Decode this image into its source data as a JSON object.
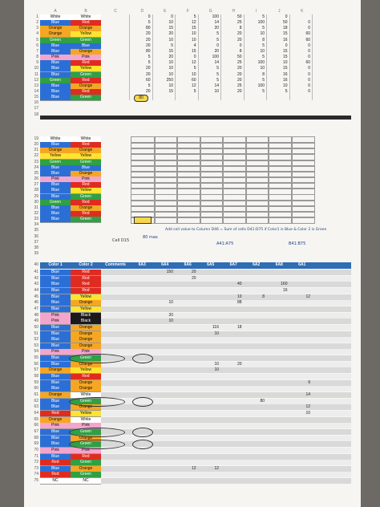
{
  "colors": {
    "White": "#ffffff",
    "Red": "#e02b20",
    "Orange": "#f5a623",
    "Yellow": "#ffe32e",
    "Green": "#2fa043",
    "Blue": "#2b6fd6",
    "Pink": "#f4a5cc",
    "Black": "#1a1a1a",
    "NC": "#ffffff",
    "header": "#2f6db5",
    "divider": "#2a2a2a"
  },
  "col_headers": [
    "A",
    "B",
    "C",
    "D",
    "E",
    "F",
    "G",
    "H",
    "I",
    "J",
    "K"
  ],
  "top_rows": [
    {
      "n": "1",
      "a": "White",
      "b": "White",
      "v": [
        "0",
        "0",
        "5",
        "100",
        "50",
        "5",
        "0"
      ]
    },
    {
      "n": "2",
      "a": "Blue",
      "b": "Red",
      "v": [
        "5",
        "10",
        "12",
        "14",
        "25",
        "100",
        "50",
        "0"
      ]
    },
    {
      "n": "3",
      "a": "Orange",
      "b": "Orange",
      "v": [
        "80",
        "15",
        "15",
        "20",
        "8",
        "5",
        "18",
        "0"
      ]
    },
    {
      "n": "4",
      "a": "Orange",
      "b": "Yellow",
      "v": [
        "20",
        "20",
        "10",
        "5",
        "20",
        "10",
        "15",
        "60"
      ]
    },
    {
      "n": "5",
      "a": "Green",
      "b": "Green",
      "v": [
        "20",
        "10",
        "10",
        "5",
        "20",
        "8",
        "16",
        "60"
      ]
    },
    {
      "n": "6",
      "a": "Blue",
      "b": "Blue",
      "v": [
        "20",
        "5",
        "4",
        "0",
        "0",
        "5",
        "0",
        "0"
      ]
    },
    {
      "n": "7",
      "a": "Blue",
      "b": "Orange",
      "v": [
        "80",
        "15",
        "15",
        "20",
        "8",
        "10",
        "15",
        "0"
      ]
    },
    {
      "n": "8",
      "a": "Pink",
      "b": "Pink",
      "v": [
        "5",
        "20",
        "0",
        "100",
        "50",
        "5",
        "15",
        "0"
      ]
    },
    {
      "n": "9",
      "a": "Blue",
      "b": "Red",
      "v": [
        "5",
        "10",
        "12",
        "14",
        "25",
        "100",
        "10",
        "60"
      ]
    },
    {
      "n": "10",
      "a": "Blue",
      "b": "Yellow",
      "v": [
        "20",
        "10",
        "5",
        "5",
        "20",
        "10",
        "15",
        "0"
      ]
    },
    {
      "n": "11",
      "a": "Blue",
      "b": "Green",
      "v": [
        "20",
        "10",
        "10",
        "5",
        "20",
        "8",
        "16",
        "0"
      ]
    },
    {
      "n": "12",
      "a": "Green",
      "b": "Red",
      "v": [
        "60",
        "250",
        "60",
        "5",
        "20",
        "5",
        "16",
        "0"
      ]
    },
    {
      "n": "13",
      "a": "Blue",
      "b": "Orange",
      "v": [
        "5",
        "10",
        "12",
        "14",
        "25",
        "100",
        "10",
        "0"
      ]
    },
    {
      "n": "14",
      "a": "Blue",
      "b": "Red",
      "v": [
        "20",
        "15",
        "5",
        "10",
        "20",
        "5",
        "5",
        "0"
      ]
    },
    {
      "n": "15",
      "a": "Blue",
      "b": "Green",
      "v": [
        "80",
        "",
        "",
        "",
        "",
        "",
        "",
        ""
      ]
    }
  ],
  "mid_rows": [
    {
      "n": "19",
      "a": "White",
      "b": "White"
    },
    {
      "n": "20",
      "a": "Blue",
      "b": "Red"
    },
    {
      "n": "21",
      "a": "Orange",
      "b": "Orange"
    },
    {
      "n": "22",
      "a": "Yellow",
      "b": "Yellow"
    },
    {
      "n": "23",
      "a": "Green",
      "b": "Green"
    },
    {
      "n": "24",
      "a": "Blue",
      "b": "Blue"
    },
    {
      "n": "25",
      "a": "Blue",
      "b": "Orange"
    },
    {
      "n": "26",
      "a": "Pink",
      "b": "Pink"
    },
    {
      "n": "27",
      "a": "Blue",
      "b": "Red"
    },
    {
      "n": "28",
      "a": "Blue",
      "b": "Yellow"
    },
    {
      "n": "29",
      "a": "Blue",
      "b": "Green"
    },
    {
      "n": "30",
      "a": "Green",
      "b": "Red"
    },
    {
      "n": "31",
      "a": "Blue",
      "b": "Orange"
    },
    {
      "n": "32",
      "a": "Blue",
      "b": "Red"
    },
    {
      "n": "33",
      "a": "Blue",
      "b": "Green"
    }
  ],
  "empty_rows": [
    "16",
    "17",
    "18",
    "34",
    "35",
    "36",
    "37",
    "38",
    "39"
  ],
  "section_header": {
    "n": "40",
    "labels": [
      "Color 1",
      "Color 2",
      "Comments",
      "6A3",
      "6A4",
      "6A6",
      "6A5",
      "6A7",
      "6A2",
      "6A8",
      "6A1"
    ]
  },
  "bottom_rows": [
    {
      "n": "41",
      "a": "Blue",
      "b": "Red",
      "v": [
        "",
        "150",
        "20",
        "",
        "",
        "",
        "",
        ""
      ]
    },
    {
      "n": "42",
      "a": "Blue",
      "b": "Red",
      "v": [
        "",
        "",
        "20",
        "",
        "",
        "",
        "",
        ""
      ]
    },
    {
      "n": "43",
      "a": "Blue",
      "b": "Red",
      "v": [
        "",
        "",
        "",
        "",
        "40",
        "",
        "160",
        ""
      ]
    },
    {
      "n": "44",
      "a": "Blue",
      "b": "Red",
      "v": [
        "",
        "",
        "",
        "",
        "",
        "",
        "16",
        ""
      ]
    },
    {
      "n": "45",
      "a": "Blue",
      "b": "Yellow",
      "v": [
        "",
        "",
        "",
        "",
        "10",
        "8",
        "",
        "12"
      ]
    },
    {
      "n": "46",
      "a": "Blue",
      "b": "Orange",
      "v": [
        "",
        "10",
        "",
        "",
        "88",
        "",
        "",
        ""
      ]
    },
    {
      "n": "47",
      "a": "Blue",
      "b": "Yellow",
      "v": [
        "",
        "",
        "",
        "",
        "",
        "",
        "",
        ""
      ]
    },
    {
      "n": "48",
      "a": "Pink",
      "b": "Black",
      "v": [
        "",
        "20",
        "",
        "",
        "",
        "",
        "",
        ""
      ]
    },
    {
      "n": "49",
      "a": "Pink",
      "b": "Black",
      "v": [
        "",
        "10",
        "",
        "",
        "",
        "",
        "",
        ""
      ]
    },
    {
      "n": "50",
      "a": "Blue",
      "b": "Orange",
      "v": [
        "",
        "",
        "",
        "116",
        "18",
        "",
        "",
        ""
      ]
    },
    {
      "n": "51",
      "a": "Blue",
      "b": "Orange",
      "v": [
        "",
        "",
        "",
        "10",
        "",
        "",
        "",
        ""
      ]
    },
    {
      "n": "52",
      "a": "Blue",
      "b": "Orange",
      "v": [
        "",
        "",
        "",
        "",
        "",
        "",
        "",
        ""
      ]
    },
    {
      "n": "53",
      "a": "Blue",
      "b": "Orange",
      "v": [
        "",
        "",
        "",
        "",
        "",
        "",
        "",
        ""
      ]
    },
    {
      "n": "54",
      "a": "Pink",
      "b": "Pink",
      "v": [
        "",
        "",
        "",
        "",
        "",
        "",
        "",
        ""
      ]
    },
    {
      "n": "55",
      "a": "Blue",
      "b": "Green",
      "v": [
        "",
        "",
        "",
        "",
        "",
        "",
        "",
        ""
      ]
    },
    {
      "n": "56",
      "a": "Blue",
      "b": "Orange",
      "v": [
        "",
        "",
        "",
        "10",
        "20",
        "",
        "",
        ""
      ]
    },
    {
      "n": "57",
      "a": "Orange",
      "b": "Yellow",
      "v": [
        "",
        "",
        "",
        "10",
        "",
        "",
        "",
        ""
      ]
    },
    {
      "n": "58",
      "a": "Blue",
      "b": "Red",
      "v": [
        "",
        "",
        "",
        "",
        "",
        "",
        "",
        ""
      ]
    },
    {
      "n": "59",
      "a": "Blue",
      "b": "Orange",
      "v": [
        "",
        "",
        "",
        "",
        "",
        "",
        "",
        "9"
      ]
    },
    {
      "n": "60",
      "a": "Blue",
      "b": "Orange",
      "v": [
        "",
        "",
        "",
        "",
        "",
        "",
        "",
        ""
      ]
    },
    {
      "n": "61",
      "a": "Orange",
      "b": "White",
      "v": [
        "",
        "",
        "",
        "",
        "",
        "",
        "",
        "14"
      ]
    },
    {
      "n": "62",
      "a": "Blue",
      "b": "Green",
      "v": [
        "",
        "",
        "",
        "",
        "",
        "80",
        "",
        ""
      ]
    },
    {
      "n": "63",
      "a": "Blue",
      "b": "Orange",
      "v": [
        "",
        "",
        "",
        "",
        "",
        "",
        "",
        "12"
      ]
    },
    {
      "n": "64",
      "a": "Red",
      "b": "Yellow",
      "v": [
        "",
        "",
        "",
        "",
        "",
        "",
        "",
        "10"
      ]
    },
    {
      "n": "65",
      "a": "Orange",
      "b": "White",
      "v": [
        "",
        "",
        "",
        "",
        "",
        "",
        "",
        ""
      ]
    },
    {
      "n": "66",
      "a": "Pink",
      "b": "Pink",
      "v": [
        "",
        "",
        "",
        "",
        "",
        "",
        "",
        ""
      ]
    },
    {
      "n": "67",
      "a": "Blue",
      "b": "Green",
      "v": [
        "",
        "",
        "",
        "",
        "",
        "",
        "",
        ""
      ]
    },
    {
      "n": "68",
      "a": "Blue",
      "b": "Orange",
      "v": [
        "",
        "",
        "",
        "",
        "",
        "",
        "",
        ""
      ]
    },
    {
      "n": "69",
      "a": "Blue",
      "b": "Green",
      "v": [
        "",
        "",
        "",
        "",
        "",
        "",
        "",
        ""
      ]
    },
    {
      "n": "70",
      "a": "Pink",
      "b": "Pink",
      "v": [
        "",
        "",
        "",
        "",
        "",
        "",
        "",
        ""
      ]
    },
    {
      "n": "71",
      "a": "Blue",
      "b": "Red",
      "v": [
        "",
        "",
        "",
        "",
        "",
        "",
        "",
        ""
      ]
    },
    {
      "n": "72",
      "a": "Red",
      "b": "Green",
      "v": [
        "",
        "",
        "",
        "",
        "",
        "",
        "",
        ""
      ]
    },
    {
      "n": "73",
      "a": "Blue",
      "b": "Orange",
      "v": [
        "",
        "",
        "12",
        "12",
        "",
        "",
        "",
        ""
      ]
    },
    {
      "n": "74",
      "a": "Red",
      "b": "Green",
      "v": [
        "",
        "",
        "",
        "",
        "",
        "",
        "",
        ""
      ]
    },
    {
      "n": "75",
      "a": "NC",
      "b": "NC",
      "v": [
        "",
        "",
        "",
        "",
        "",
        "",
        "",
        ""
      ]
    }
  ],
  "handwriting": {
    "d15": "80",
    "sum_note": "80 max",
    "formula": "Add cell value to Column D46 = Sum of cells D41:D75 if Color1 is Blue & Color 2 is Green",
    "ref1": "A41:A75",
    "ref2": "B41:B75",
    "cell_label": "Cell D15"
  }
}
